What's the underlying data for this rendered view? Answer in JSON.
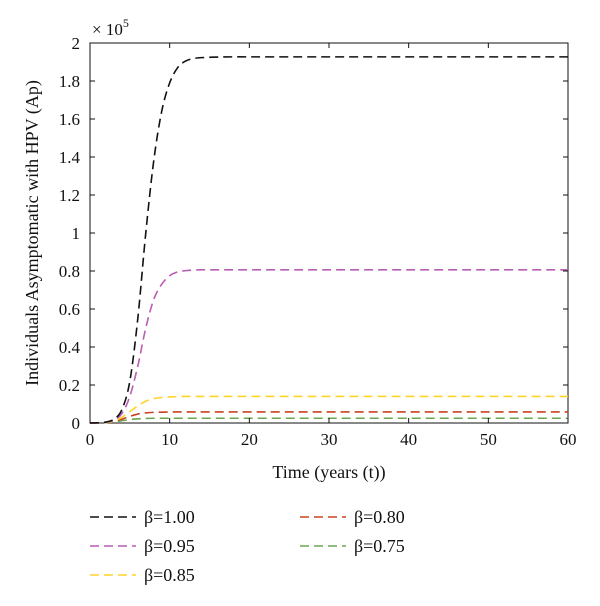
{
  "chart_data": {
    "type": "line",
    "title": "",
    "xlabel": "Time (years (t))",
    "ylabel": "Individuals Asymptomatic with HPV (Ap)",
    "y_multiplier": "× 10",
    "y_multiplier_exp": "5",
    "xlim": [
      0,
      60
    ],
    "ylim": [
      0,
      2
    ],
    "xticks": [
      "0",
      "10",
      "20",
      "30",
      "40",
      "50",
      "60"
    ],
    "yticks": [
      "0",
      "0.2",
      "0.4",
      "0.6",
      "0.8",
      "1",
      "1.2",
      "1.4",
      "1.6",
      "1.8",
      "2"
    ],
    "grid": false,
    "legend_position": "bottom",
    "x": [
      0,
      1,
      2,
      3,
      4,
      5,
      6,
      7,
      8,
      9,
      10,
      11,
      12,
      13,
      14,
      16,
      18,
      20,
      25,
      30,
      40,
      50,
      60
    ],
    "series": [
      {
        "name": "β=1.00",
        "color": "#111111",
        "values": [
          0,
          0.001,
          0.005,
          0.02,
          0.07,
          0.22,
          0.55,
          1.0,
          1.38,
          1.64,
          1.79,
          1.87,
          1.905,
          1.918,
          1.923,
          1.926,
          1.927,
          1.927,
          1.927,
          1.927,
          1.927,
          1.927,
          1.927
        ]
      },
      {
        "name": "β=0.95",
        "color": "#b95db5",
        "values": [
          0,
          0.001,
          0.004,
          0.015,
          0.05,
          0.14,
          0.3,
          0.5,
          0.65,
          0.73,
          0.775,
          0.795,
          0.802,
          0.805,
          0.806,
          0.806,
          0.806,
          0.806,
          0.806,
          0.806,
          0.806,
          0.806,
          0.806
        ]
      },
      {
        "name": "β=0.85",
        "color": "#ffd42a",
        "values": [
          0,
          0.001,
          0.003,
          0.01,
          0.03,
          0.06,
          0.09,
          0.115,
          0.128,
          0.134,
          0.137,
          0.139,
          0.14,
          0.14,
          0.14,
          0.14,
          0.14,
          0.14,
          0.14,
          0.14,
          0.14,
          0.14,
          0.14
        ]
      },
      {
        "name": "β=0.80",
        "color": "#c8431f",
        "values": [
          0,
          0.001,
          0.003,
          0.008,
          0.02,
          0.035,
          0.047,
          0.053,
          0.056,
          0.057,
          0.058,
          0.058,
          0.058,
          0.058,
          0.058,
          0.058,
          0.058,
          0.058,
          0.058,
          0.058,
          0.058,
          0.058,
          0.058
        ]
      },
      {
        "name": "β=0.75",
        "color": "#6aa84f",
        "values": [
          0,
          0.001,
          0.002,
          0.006,
          0.012,
          0.018,
          0.022,
          0.024,
          0.025,
          0.025,
          0.025,
          0.025,
          0.025,
          0.025,
          0.025,
          0.025,
          0.025,
          0.025,
          0.025,
          0.025,
          0.025,
          0.025,
          0.025
        ]
      }
    ]
  }
}
